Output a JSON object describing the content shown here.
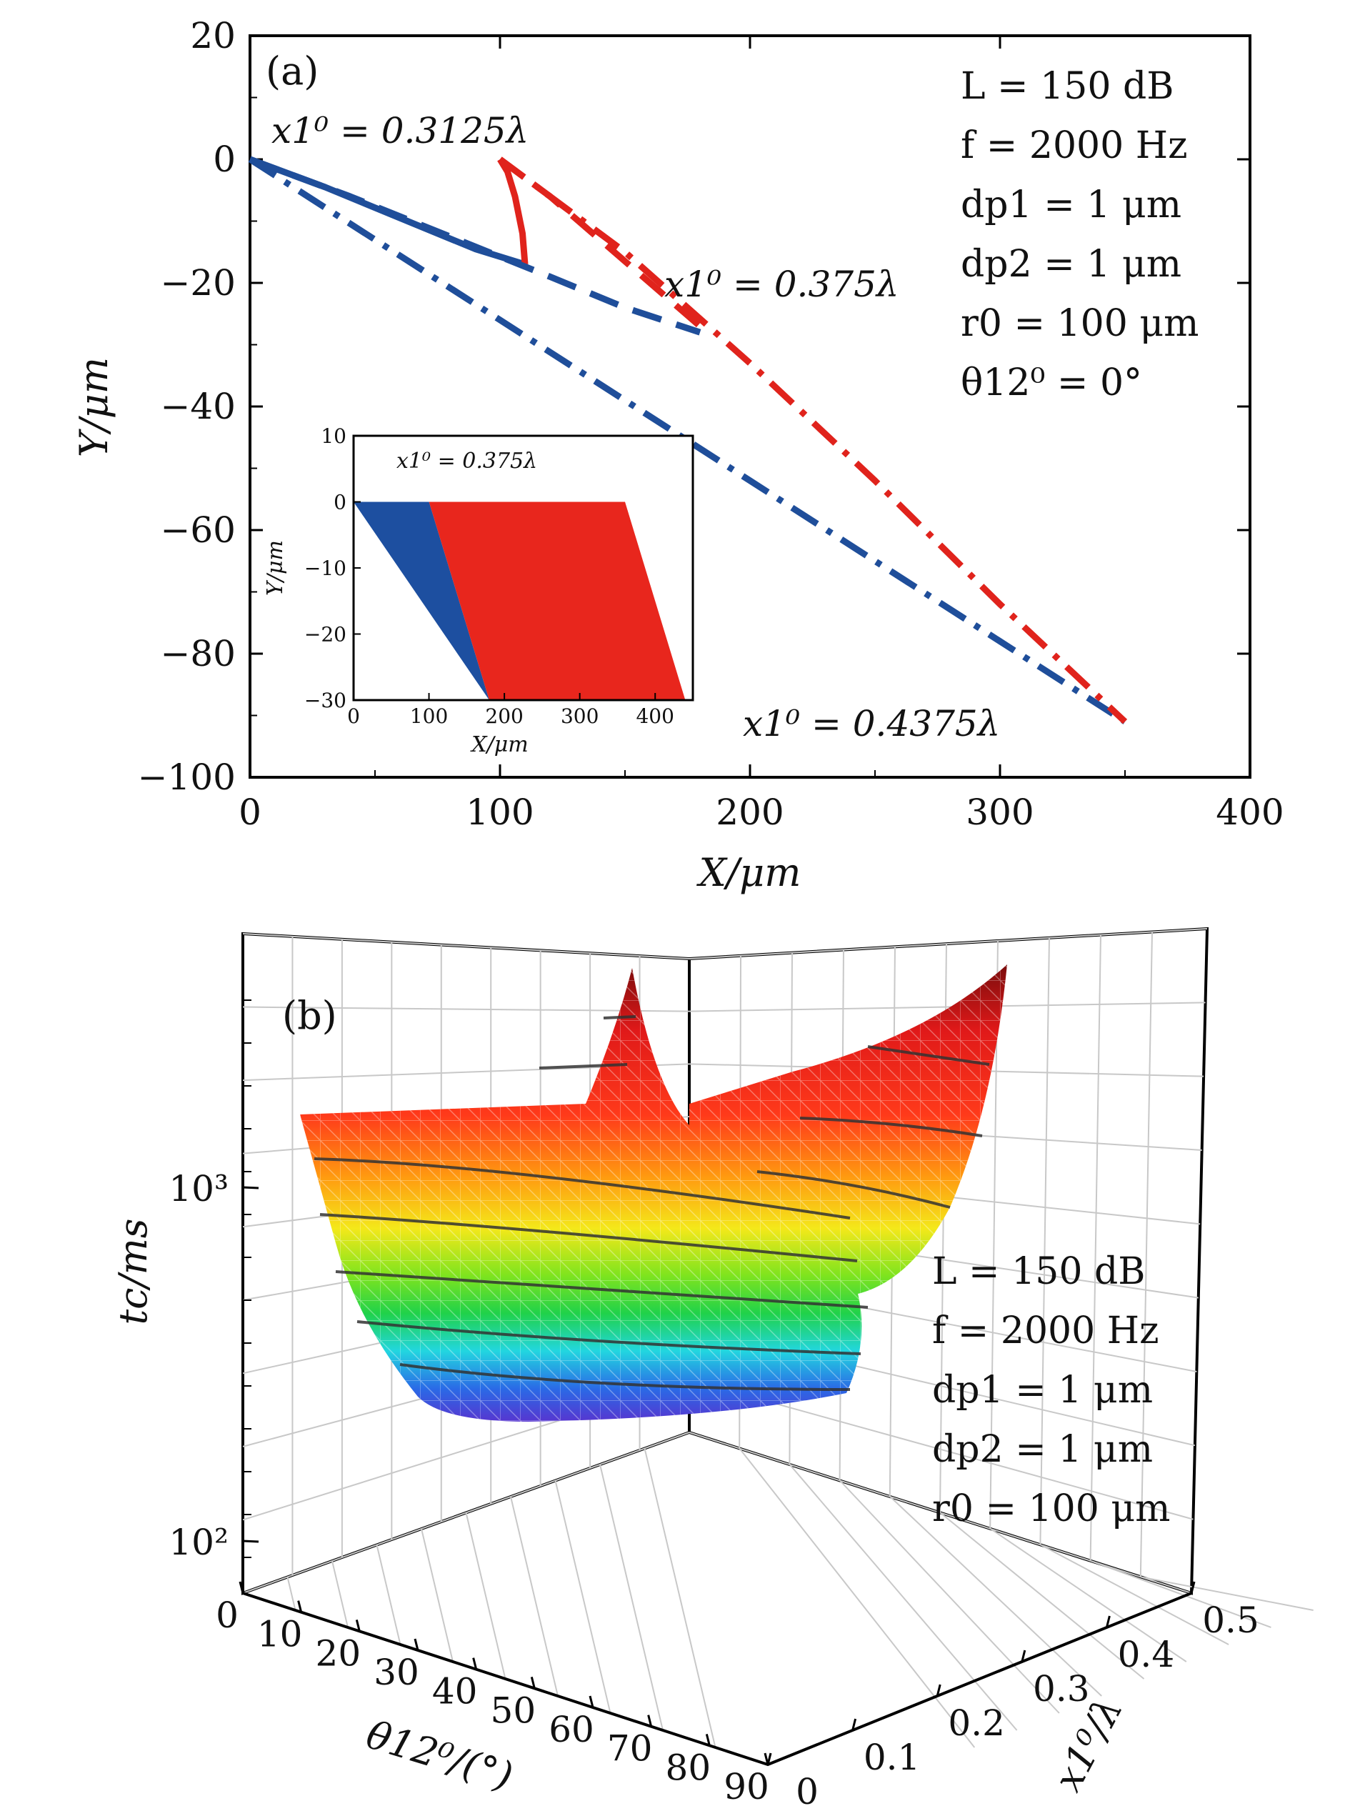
{
  "chart_data": [
    {
      "type": "line",
      "panel_label": "(a)",
      "xlabel": "X/μm",
      "ylabel": "Y/μm",
      "xlim": [
        0,
        400
      ],
      "ylim": [
        -100,
        20
      ],
      "xticks": [
        "0",
        "100",
        "200",
        "300",
        "400"
      ],
      "yticks": [
        "20",
        "0",
        "−20",
        "−40",
        "−60",
        "−80",
        "−100"
      ],
      "xtick_values": [
        0,
        100,
        200,
        300,
        400
      ],
      "ytick_values": [
        20,
        0,
        -20,
        -40,
        -60,
        -80,
        -100
      ],
      "grid": false,
      "params": [
        "L = 150 dB",
        "f = 2000 Hz",
        "dp1 = 1 μm",
        "dp2 = 1 μm",
        "r0 = 100 μm",
        "θ12⁰ = 0°"
      ],
      "annotations": [
        {
          "text": "x1⁰ = 0.3125λ",
          "x": 100,
          "y": 5
        },
        {
          "text": "x1⁰ = 0.375λ",
          "x": 165,
          "y": -21
        },
        {
          "text": "x1⁰ = 0.4375λ",
          "x": 200,
          "y": -94
        }
      ],
      "series": [
        {
          "style": "solid",
          "color": "#1f4e9a",
          "x": [
            0,
            30,
            60,
            90,
            110
          ],
          "y": [
            0,
            -4.5,
            -9.5,
            -14.5,
            -17
          ]
        },
        {
          "style": "solid",
          "color": "#e0231c",
          "x": [
            100,
            103,
            106,
            109,
            110
          ],
          "y": [
            0,
            -2,
            -6,
            -12,
            -17
          ]
        },
        {
          "style": "dashed",
          "color": "#1f4e9a",
          "x": [
            0,
            40,
            80,
            120,
            150,
            180
          ],
          "y": [
            0,
            -6,
            -12.5,
            -19,
            -24,
            -28
          ]
        },
        {
          "style": "dashed",
          "color": "#e0231c",
          "x": [
            100,
            120,
            140,
            160,
            180
          ],
          "y": [
            0,
            -6,
            -13,
            -20,
            -27
          ]
        },
        {
          "style": "dashdot",
          "color": "#1f4e9a",
          "x": [
            0,
            50,
            100,
            150,
            200,
            250,
            300,
            350
          ],
          "y": [
            0,
            -13,
            -26,
            -39,
            -52,
            -65,
            -78,
            -91
          ]
        },
        {
          "style": "dashdot",
          "color": "#e0231c",
          "x": [
            100,
            150,
            200,
            250,
            300,
            350
          ],
          "y": [
            0,
            -15,
            -33,
            -52,
            -72,
            -91
          ]
        }
      ],
      "inset": {
        "title": "x1⁰ = 0.375λ",
        "xlabel": "X/μm",
        "ylabel": "Y/μm",
        "xlim": [
          0,
          450
        ],
        "ylim": [
          -30,
          10
        ],
        "xticks": [
          "0",
          "100",
          "200",
          "300",
          "400"
        ],
        "yticks": [
          "10",
          "0",
          "−10",
          "−20",
          "−30"
        ],
        "xtick_values": [
          0,
          100,
          200,
          300,
          400
        ],
        "ytick_values": [
          10,
          0,
          -10,
          -20,
          -30
        ],
        "regions": [
          {
            "color": "#1d4fa0",
            "polygon_x": [
              0,
              100,
              180,
              0
            ],
            "polygon_y": [
              0,
              0,
              -30,
              0
            ]
          },
          {
            "color": "#e8261d",
            "polygon_x": [
              100,
              360,
              440,
              180
            ],
            "polygon_y": [
              0,
              0,
              -30,
              -30
            ]
          }
        ]
      }
    },
    {
      "type": "surface",
      "panel_label": "(b)",
      "zlabel": "tc/ms",
      "xlabel": "θ12⁰/(°)",
      "ylabel": "x1⁰/λ",
      "zscale": "log",
      "zticks": [
        "10³",
        "10²"
      ],
      "xticks": [
        "0",
        "10",
        "20",
        "30",
        "40",
        "50",
        "60",
        "70",
        "80",
        "90"
      ],
      "yticks": [
        "0",
        "0.1",
        "0.2",
        "0.3",
        "0.4",
        "0.5"
      ],
      "params": [
        "L = 150 dB",
        "f = 2000 Hz",
        "dp1 = 1 μm",
        "dp2 = 1 μm",
        "r0 = 100 μm"
      ]
    }
  ]
}
